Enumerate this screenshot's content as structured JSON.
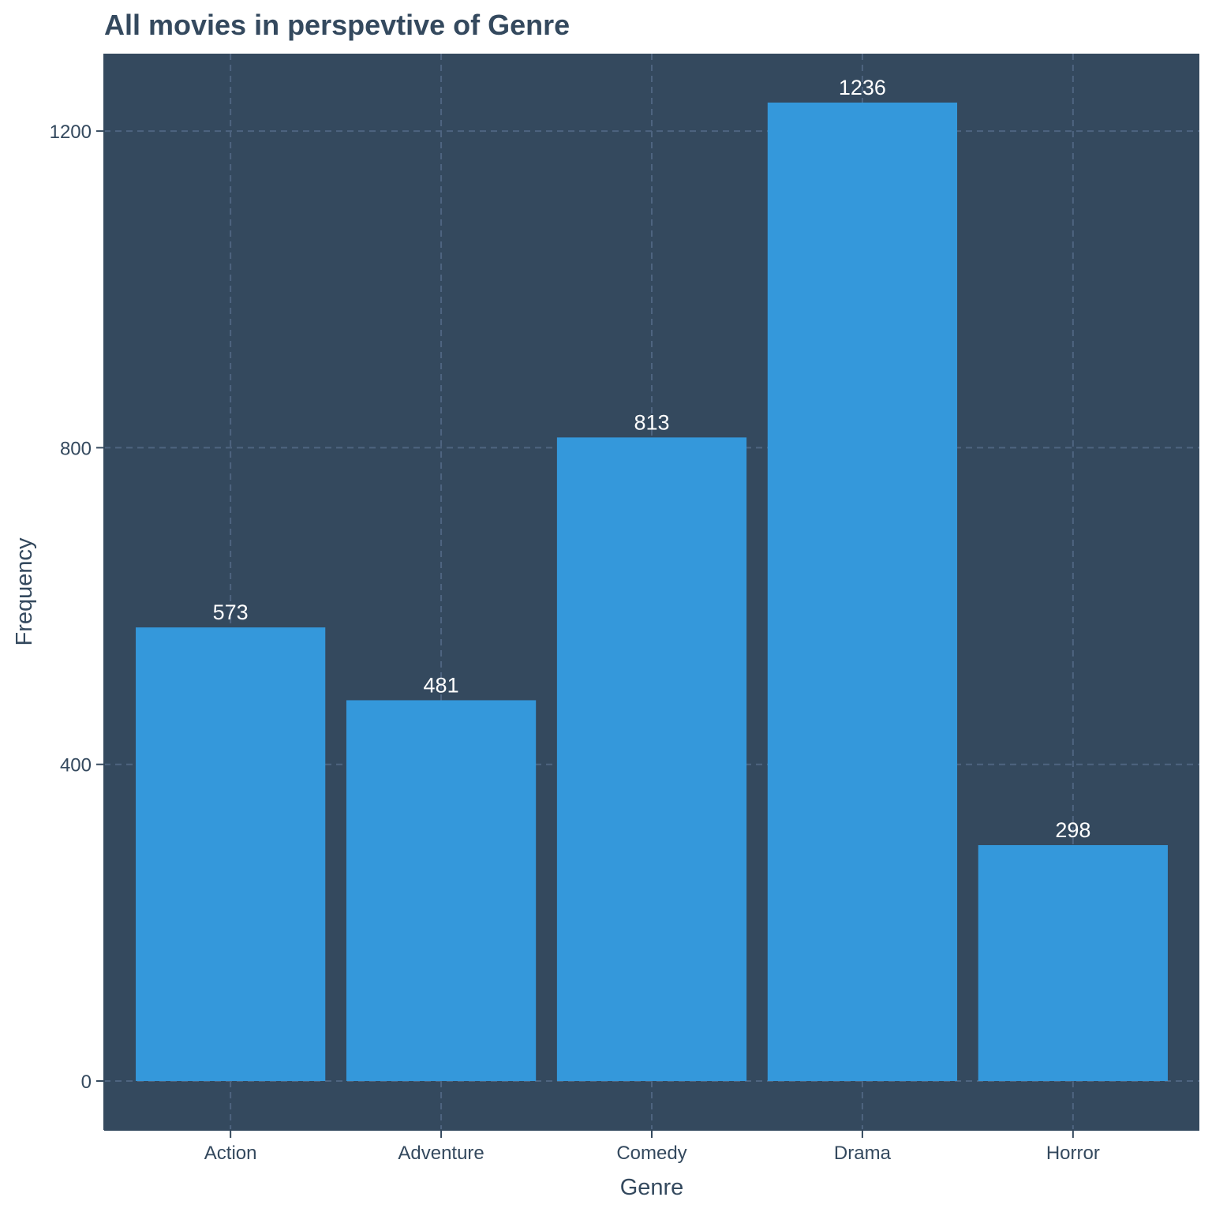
{
  "chart_data": {
    "type": "bar",
    "title": "All movies in perspevtive of Genre",
    "xlabel": "Genre",
    "ylabel": "Frequency",
    "categories": [
      "Action",
      "Adventure",
      "Comedy",
      "Drama",
      "Horror"
    ],
    "values": [
      573,
      481,
      813,
      1236,
      298
    ],
    "data_labels": [
      "573",
      "481",
      "813",
      "1236",
      "298"
    ],
    "ylim": [
      -61.8,
      1297.8
    ],
    "yticks": [
      0,
      400,
      800,
      1200
    ],
    "ytick_labels": [
      "0",
      "400",
      "800",
      "1200"
    ],
    "grid": true,
    "grid_style": "dashed",
    "legend": "none"
  },
  "colors": {
    "panel_background": "#34495E",
    "bar_fill": "#3498DB",
    "grid_line": "#4E6480",
    "title_text": "#34495E",
    "axis_text": "#34495E",
    "data_label_text": "#FFFFFF"
  }
}
